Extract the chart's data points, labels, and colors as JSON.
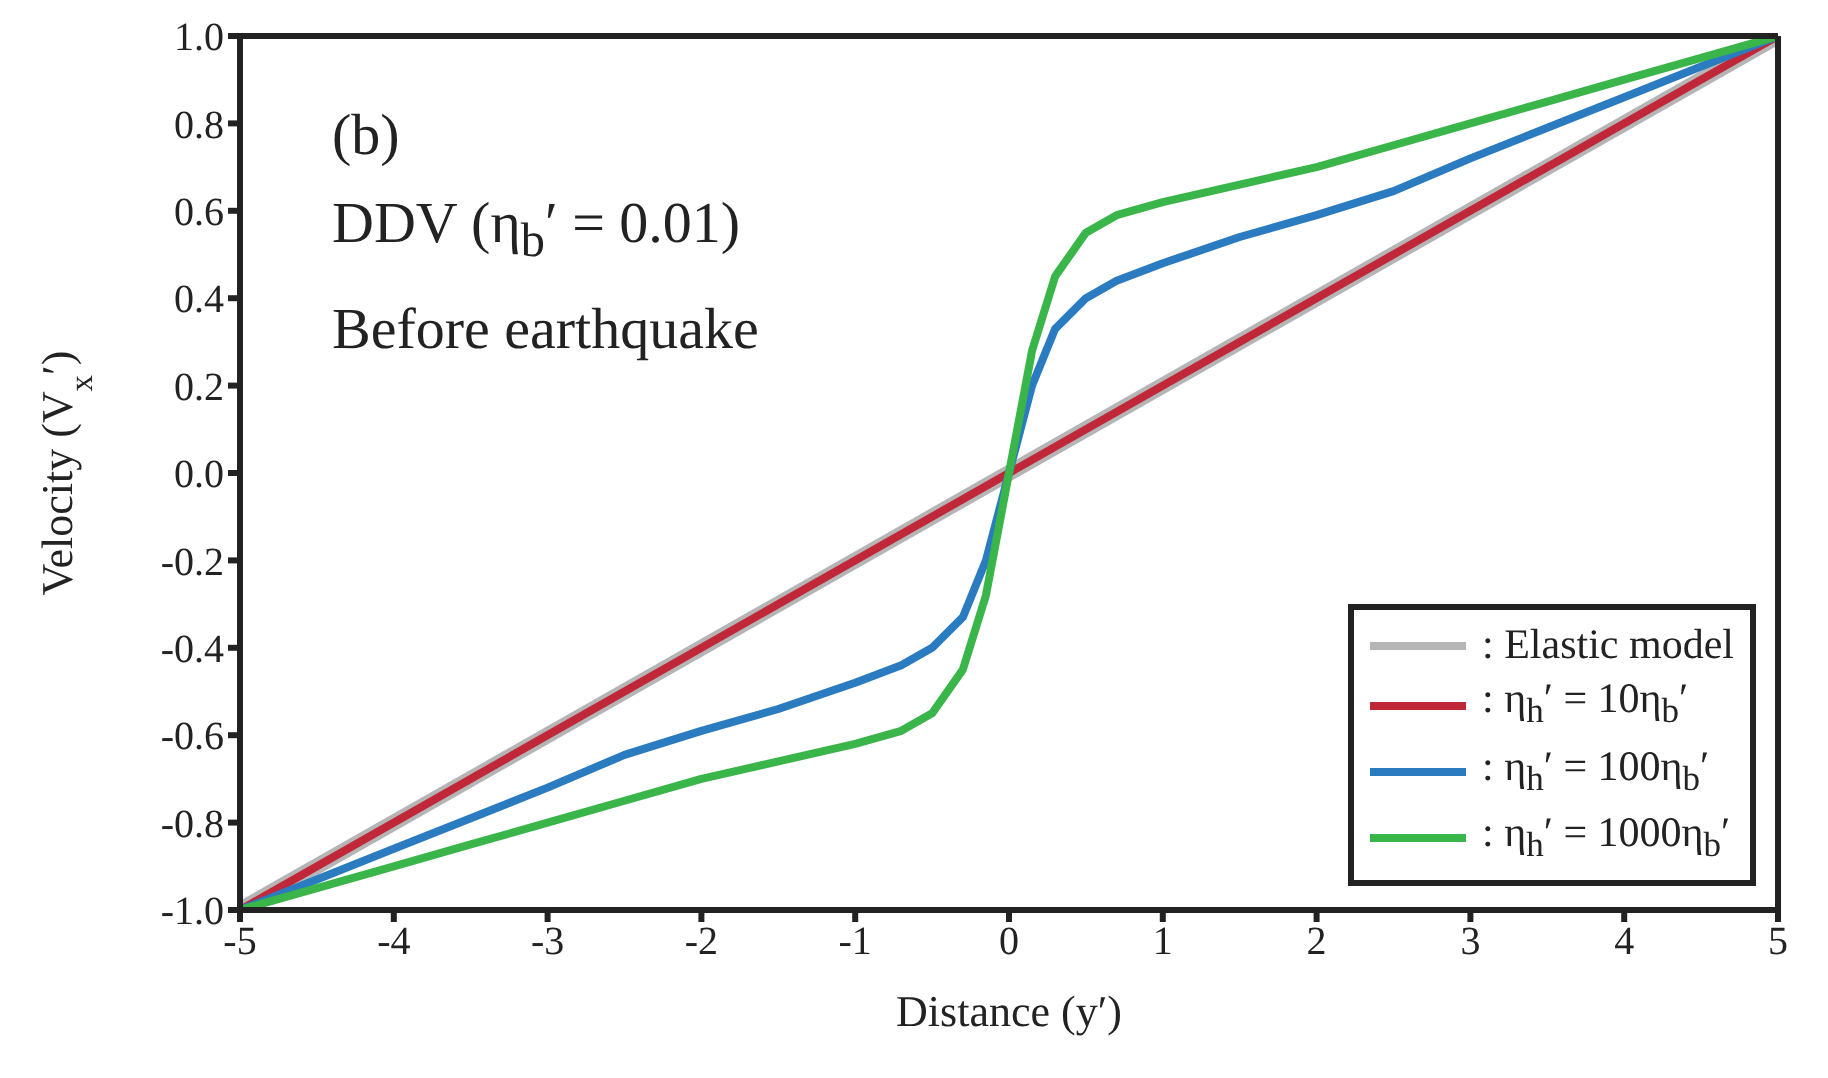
{
  "chart_data": {
    "type": "line",
    "xlabel": "Distance (y′)",
    "ylabel": "Velocity (V$_{x}$′)",
    "annotations": [
      "(b)",
      "DDV (η$_{b}$′ = 0.01)",
      "Before earthquake"
    ],
    "series": [
      {
        "name": ": Elastic model",
        "color": "#b5b5b5",
        "x": [
          -5,
          0,
          5
        ],
        "values": [
          -1,
          0,
          1
        ]
      },
      {
        "name": ": η$_{h}$′ = 10η$_{b}$′",
        "color": "#c0283a",
        "x": [
          -5,
          -2.5,
          0,
          2.5,
          5
        ],
        "values": [
          -1,
          -0.5,
          0,
          0.5,
          1
        ]
      },
      {
        "name": ": η$_{h}$′ = 100η$_{b}$′",
        "color": "#2a7bc0",
        "x": [
          -5,
          -4.5,
          -4,
          -3.5,
          -3,
          -2.5,
          -2,
          -1.5,
          -1,
          -0.7,
          -0.5,
          -0.3,
          -0.15,
          0,
          0.15,
          0.3,
          0.5,
          0.7,
          1,
          1.5,
          2,
          2.5,
          3,
          3.5,
          4,
          4.5,
          5
        ],
        "values": [
          -1,
          -0.93,
          -0.86,
          -0.79,
          -0.72,
          -0.645,
          -0.59,
          -0.54,
          -0.48,
          -0.44,
          -0.4,
          -0.33,
          -0.2,
          0,
          0.2,
          0.33,
          0.4,
          0.44,
          0.48,
          0.54,
          0.59,
          0.645,
          0.72,
          0.79,
          0.86,
          0.93,
          1
        ]
      },
      {
        "name": ": η$_{h}$′ = 1000η$_{b}$′",
        "color": "#3ab54a",
        "x": [
          -5,
          -4.5,
          -4,
          -3.5,
          -3,
          -2.5,
          -2,
          -1.5,
          -1,
          -0.7,
          -0.5,
          -0.3,
          -0.15,
          0,
          0.15,
          0.3,
          0.5,
          0.7,
          1,
          1.5,
          2,
          2.5,
          3,
          3.5,
          4,
          4.5,
          5
        ],
        "values": [
          -1,
          -0.95,
          -0.9,
          -0.85,
          -0.8,
          -0.75,
          -0.7,
          -0.66,
          -0.62,
          -0.59,
          -0.55,
          -0.45,
          -0.28,
          0,
          0.28,
          0.45,
          0.55,
          0.59,
          0.62,
          0.66,
          0.7,
          0.75,
          0.8,
          0.85,
          0.9,
          0.95,
          1
        ]
      }
    ],
    "xlim": [
      -5,
      5
    ],
    "xticks": [
      -5,
      -4,
      -3,
      -2,
      -1,
      0,
      1,
      2,
      3,
      4,
      5
    ],
    "ylim": [
      -1,
      1
    ],
    "yticks": [
      {
        "value": -1,
        "label": "-1.0"
      },
      {
        "value": -0.8,
        "label": "-0.8"
      },
      {
        "value": -0.6,
        "label": "-0.6"
      },
      {
        "value": -0.4,
        "label": "-0.4"
      },
      {
        "value": -0.2,
        "label": "-0.2"
      },
      {
        "value": 0,
        "label": "0.0"
      },
      {
        "value": 0.2,
        "label": "0.2"
      },
      {
        "value": 0.4,
        "label": "0.4"
      },
      {
        "value": 0.6,
        "label": "0.6"
      },
      {
        "value": 0.8,
        "label": "0.8"
      },
      {
        "value": 1,
        "label": "1.0"
      }
    ],
    "grid": false,
    "legend": "bottom right",
    "marker": "none",
    "line_style": "solid"
  }
}
